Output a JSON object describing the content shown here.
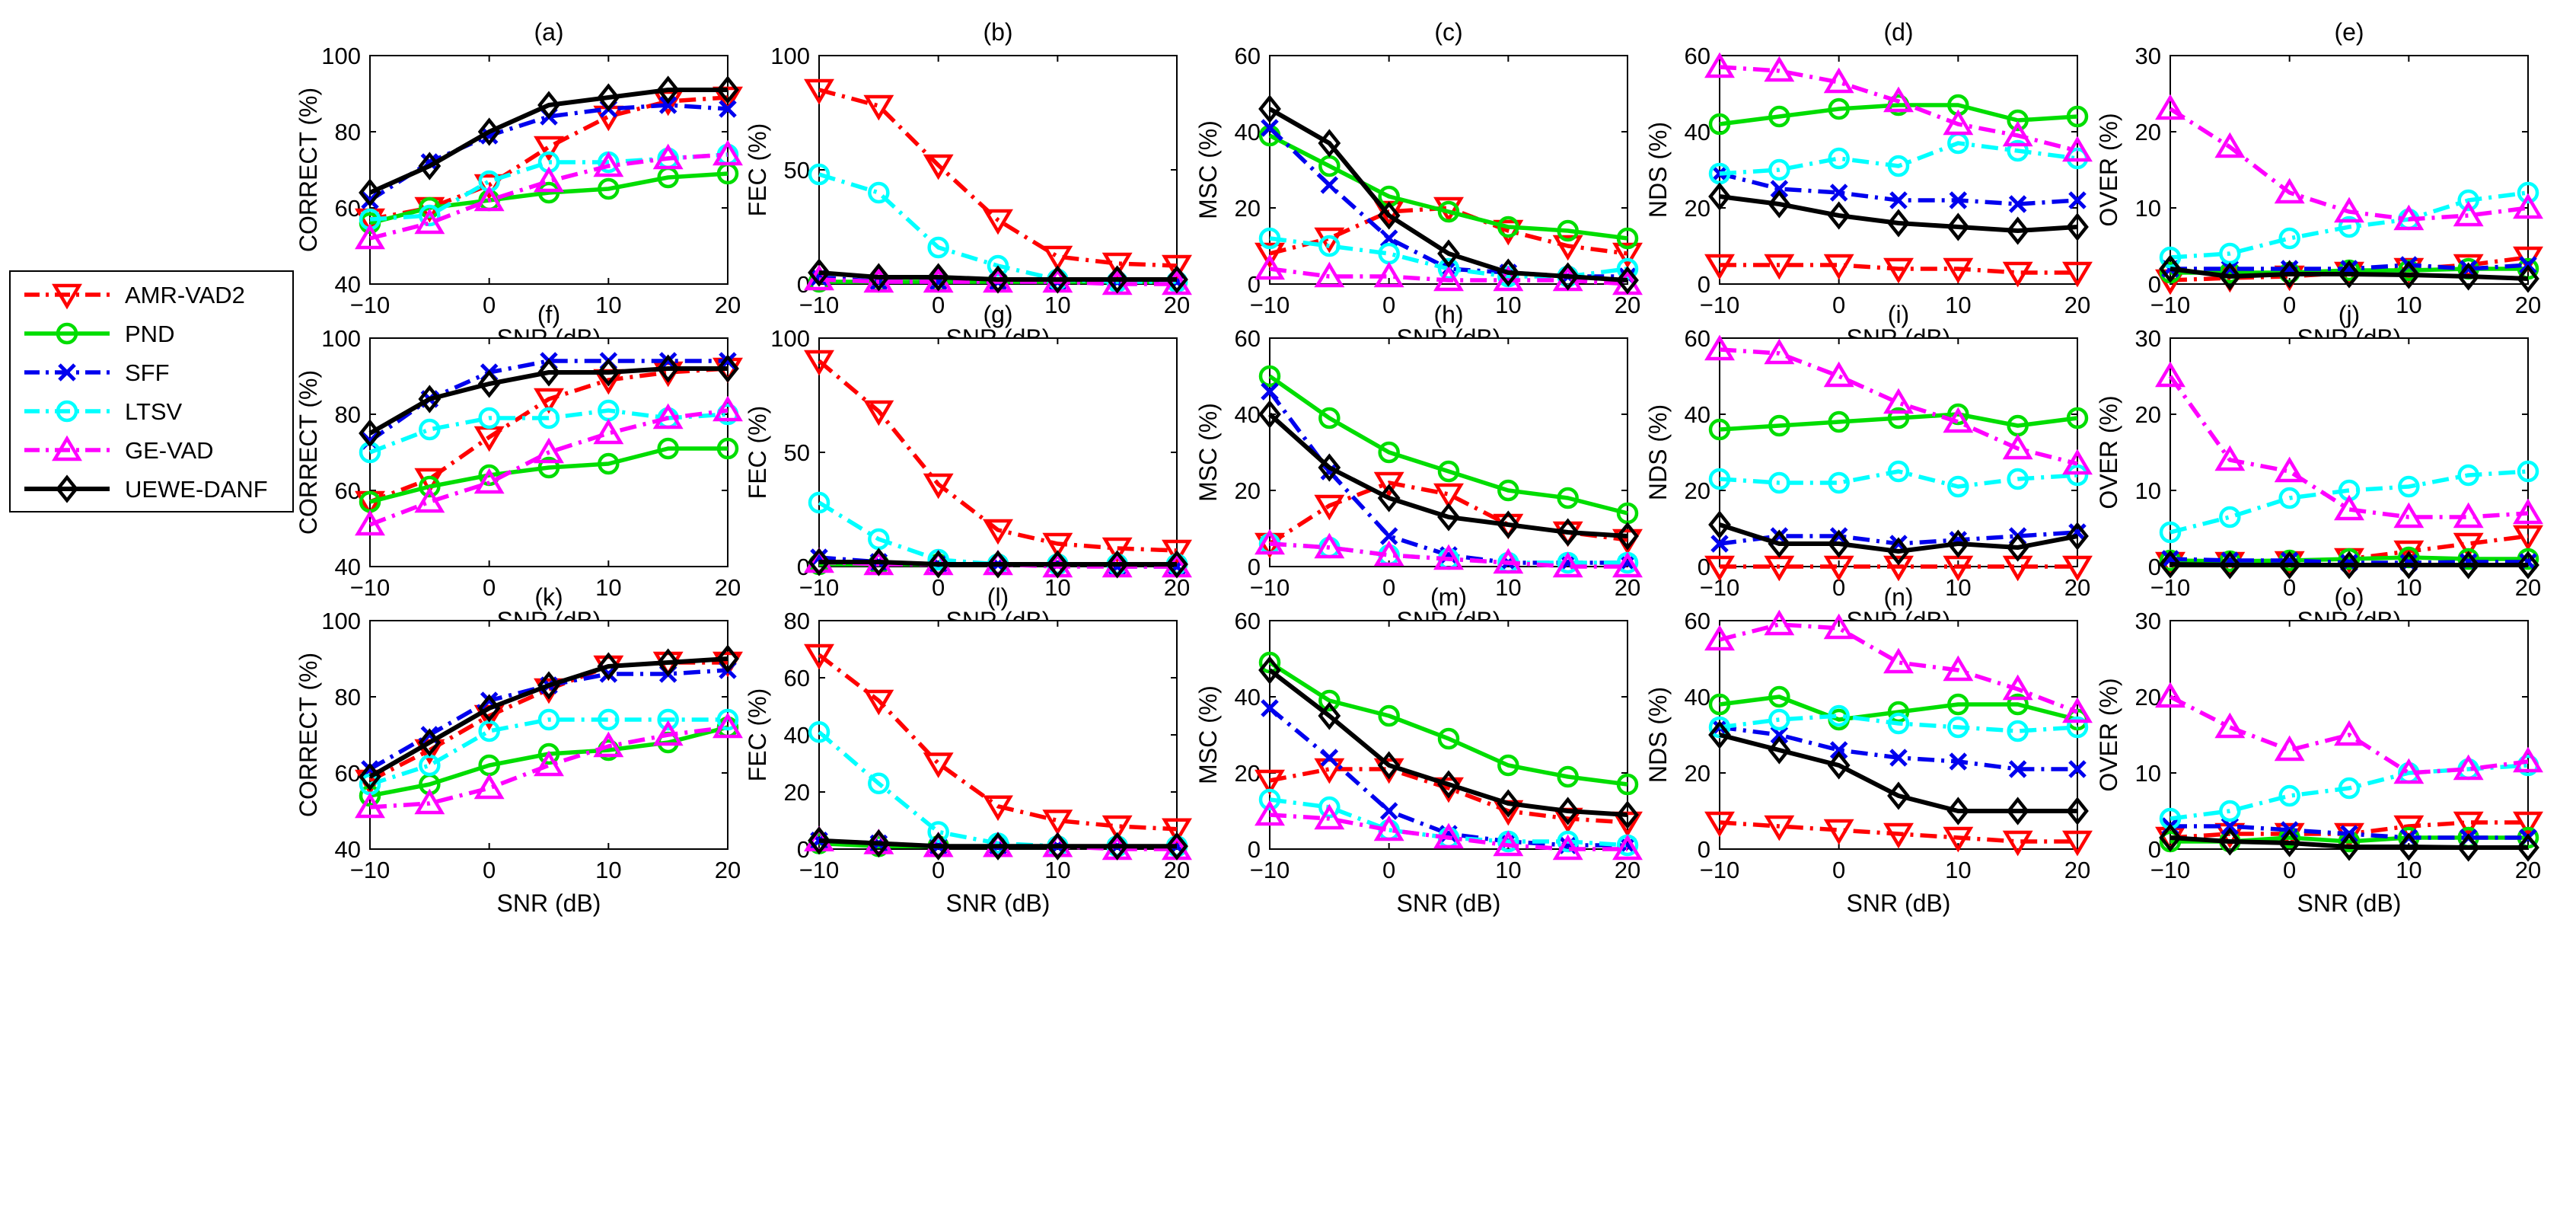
{
  "legend": [
    {
      "key": "amr",
      "label": "AMR-VAD2",
      "color": "#ff0000",
      "dash": "dashdot",
      "marker": "triangle-down"
    },
    {
      "key": "pnd",
      "label": "PND",
      "color": "#00dd00",
      "dash": "solid",
      "marker": "circle"
    },
    {
      "key": "sff",
      "label": "SFF",
      "color": "#0000ee",
      "dash": "dashdot",
      "marker": "x"
    },
    {
      "key": "ltsv",
      "label": "LTSV",
      "color": "#00ffff",
      "dash": "dashdot",
      "marker": "circle"
    },
    {
      "key": "gevad",
      "label": "GE-VAD",
      "color": "#ff00ff",
      "dash": "dashdot",
      "marker": "triangle-up"
    },
    {
      "key": "uewe",
      "label": "UEWE-DANF",
      "color": "#000000",
      "dash": "solid",
      "marker": "diamond"
    }
  ],
  "chart_data": [
    {
      "id": "a",
      "type": "line",
      "title": "(a)",
      "xlabel": "SNR (dB)",
      "ylabel": "CORRECT (%)",
      "x": [
        -10,
        -5,
        0,
        5,
        10,
        15,
        20
      ],
      "xlim": [
        -10,
        20
      ],
      "xticks": [
        "−10",
        "0",
        "10",
        "20"
      ],
      "ylim": [
        40,
        100
      ],
      "yticks": [
        "40",
        "60",
        "80",
        "100"
      ],
      "series": {
        "amr": [
          57,
          60,
          66,
          76,
          84,
          88,
          89
        ],
        "pnd": [
          56,
          60,
          62,
          64,
          65,
          68,
          69
        ],
        "sff": [
          62,
          72,
          79,
          84,
          86,
          87,
          86
        ],
        "ltsv": [
          57,
          58,
          67,
          72,
          72,
          73,
          74
        ],
        "gevad": [
          52,
          56,
          62,
          67,
          71,
          73,
          74
        ],
        "uewe": [
          64,
          71,
          80,
          87,
          89,
          91,
          91
        ]
      }
    },
    {
      "id": "b",
      "type": "line",
      "title": "(b)",
      "xlabel": "SNR (dB)",
      "ylabel": "FEC (%)",
      "x": [
        -10,
        -5,
        0,
        5,
        10,
        15,
        20
      ],
      "xlim": [
        -10,
        20
      ],
      "xticks": [
        "−10",
        "0",
        "10",
        "20"
      ],
      "ylim": [
        0,
        100
      ],
      "yticks": [
        "0",
        "50",
        "100"
      ],
      "series": {
        "amr": [
          85,
          78,
          52,
          28,
          12,
          9,
          8
        ],
        "pnd": [
          1,
          1,
          1,
          1,
          1,
          1,
          1
        ],
        "sff": [
          3,
          1,
          1,
          1,
          1,
          1,
          1
        ],
        "ltsv": [
          48,
          40,
          16,
          8,
          2,
          1,
          1
        ],
        "gevad": [
          2,
          1,
          1,
          1,
          1,
          0,
          0
        ],
        "uewe": [
          5,
          3,
          3,
          2,
          2,
          2,
          2
        ]
      }
    },
    {
      "id": "c",
      "type": "line",
      "title": "(c)",
      "xlabel": "SNR (dB)",
      "ylabel": "MSC (%)",
      "x": [
        -10,
        -5,
        0,
        5,
        10,
        15,
        20
      ],
      "xlim": [
        -10,
        20
      ],
      "xticks": [
        "−10",
        "0",
        "10",
        "20"
      ],
      "ylim": [
        0,
        60
      ],
      "yticks": [
        "0",
        "20",
        "40",
        "60"
      ],
      "series": {
        "amr": [
          8,
          12,
          19,
          20,
          14,
          10,
          8
        ],
        "pnd": [
          39,
          31,
          23,
          19,
          15,
          14,
          12
        ],
        "sff": [
          41,
          26,
          12,
          4,
          3,
          2,
          2
        ],
        "ltsv": [
          12,
          10,
          8,
          4,
          2,
          2,
          4
        ],
        "gevad": [
          4,
          2,
          2,
          1,
          1,
          1,
          0
        ],
        "uewe": [
          46,
          37,
          18,
          8,
          3,
          2,
          1
        ]
      }
    },
    {
      "id": "d",
      "type": "line",
      "title": "(d)",
      "xlabel": "SNR (dB)",
      "ylabel": "NDS (%)",
      "x": [
        -10,
        -5,
        0,
        5,
        10,
        15,
        20
      ],
      "xlim": [
        -10,
        20
      ],
      "xticks": [
        "−10",
        "0",
        "10",
        "20"
      ],
      "ylim": [
        0,
        60
      ],
      "yticks": [
        "0",
        "20",
        "40",
        "60"
      ],
      "series": {
        "amr": [
          5,
          5,
          5,
          4,
          4,
          3,
          3
        ],
        "pnd": [
          42,
          44,
          46,
          47,
          47,
          43,
          44
        ],
        "sff": [
          29,
          25,
          24,
          22,
          22,
          21,
          22
        ],
        "ltsv": [
          29,
          30,
          33,
          31,
          37,
          35,
          33
        ],
        "gevad": [
          57,
          56,
          53,
          48,
          42,
          39,
          35
        ],
        "uewe": [
          23,
          21,
          18,
          16,
          15,
          14,
          15
        ]
      }
    },
    {
      "id": "e",
      "type": "line",
      "title": "(e)",
      "xlabel": "SNR (dB)",
      "ylabel": "OVER (%)",
      "x": [
        -10,
        -5,
        0,
        5,
        10,
        15,
        20
      ],
      "xlim": [
        -10,
        20
      ],
      "xticks": [
        "−10",
        "0",
        "10",
        "20"
      ],
      "ylim": [
        0,
        30
      ],
      "yticks": [
        "0",
        "10",
        "20",
        "30"
      ],
      "series": {
        "amr": [
          0.5,
          0.8,
          1,
          1.5,
          2,
          2.5,
          3.5
        ],
        "pnd": [
          1.5,
          1.5,
          1.5,
          1.8,
          1.8,
          2,
          2
        ],
        "sff": [
          2,
          2,
          2,
          2,
          2.5,
          2,
          2.5
        ],
        "ltsv": [
          3.5,
          4,
          6,
          7.5,
          8.5,
          11,
          12
        ],
        "gevad": [
          23,
          18,
          12,
          9.5,
          8.5,
          9,
          10
        ],
        "uewe": [
          2,
          1,
          1.3,
          1.3,
          1.2,
          1,
          0.7
        ]
      }
    },
    {
      "id": "f",
      "type": "line",
      "title": "(f)",
      "xlabel": "SNR (dB)",
      "ylabel": "CORRECT (%)",
      "x": [
        -10,
        -5,
        0,
        5,
        10,
        15,
        20
      ],
      "xlim": [
        -10,
        20
      ],
      "xticks": [
        "−10",
        "0",
        "10",
        "20"
      ],
      "ylim": [
        40,
        100
      ],
      "yticks": [
        "40",
        "60",
        "80",
        "100"
      ],
      "series": {
        "amr": [
          57,
          63,
          74,
          84,
          89,
          91,
          92
        ],
        "pnd": [
          57,
          61,
          64,
          66,
          67,
          71,
          71
        ],
        "sff": [
          73,
          84,
          91,
          94,
          94,
          94,
          94
        ],
        "ltsv": [
          70,
          76,
          79,
          79,
          81,
          79,
          80
        ],
        "gevad": [
          51,
          57,
          62,
          70,
          75,
          79,
          81
        ],
        "uewe": [
          75,
          84,
          88,
          91,
          91,
          92,
          92
        ]
      }
    },
    {
      "id": "g",
      "type": "line",
      "title": "(g)",
      "xlabel": "SNR (dB)",
      "ylabel": "FEC (%)",
      "x": [
        -10,
        -5,
        0,
        5,
        10,
        15,
        20
      ],
      "xlim": [
        -10,
        20
      ],
      "xticks": [
        "−10",
        "0",
        "10",
        "20"
      ],
      "ylim": [
        0,
        100
      ],
      "yticks": [
        "0",
        "50",
        "100"
      ],
      "series": {
        "amr": [
          90,
          68,
          36,
          16,
          10,
          8,
          7
        ],
        "pnd": [
          1,
          1,
          1,
          1,
          1,
          1,
          1
        ],
        "sff": [
          4,
          2,
          1,
          1,
          1,
          0,
          0
        ],
        "ltsv": [
          28,
          12,
          3,
          1,
          1,
          1,
          1
        ],
        "gevad": [
          2,
          1,
          1,
          1,
          0,
          0,
          0
        ],
        "uewe": [
          2,
          2,
          1,
          1,
          1,
          1,
          1
        ]
      }
    },
    {
      "id": "h",
      "type": "line",
      "title": "(h)",
      "xlabel": "SNR (dB)",
      "ylabel": "MSC (%)",
      "x": [
        -10,
        -5,
        0,
        5,
        10,
        15,
        20
      ],
      "xlim": [
        -10,
        20
      ],
      "xticks": [
        "−10",
        "0",
        "10",
        "20"
      ],
      "ylim": [
        0,
        60
      ],
      "yticks": [
        "0",
        "20",
        "40",
        "60"
      ],
      "series": {
        "amr": [
          6,
          16,
          22,
          19,
          11,
          9,
          7
        ],
        "pnd": [
          50,
          39,
          30,
          25,
          20,
          18,
          14
        ],
        "sff": [
          46,
          25,
          8,
          3,
          1,
          1,
          1
        ],
        "ltsv": [
          6,
          5,
          3,
          2,
          1,
          1,
          1
        ],
        "gevad": [
          6,
          5,
          3,
          2,
          1,
          0,
          0
        ],
        "uewe": [
          40,
          26,
          18,
          13,
          11,
          9,
          8
        ]
      }
    },
    {
      "id": "i",
      "type": "line",
      "title": "(i)",
      "xlabel": "SNR (dB)",
      "ylabel": "NDS (%)",
      "x": [
        -10,
        -5,
        0,
        5,
        10,
        15,
        20
      ],
      "xlim": [
        -10,
        20
      ],
      "xticks": [
        "−10",
        "0",
        "10",
        "20"
      ],
      "ylim": [
        0,
        60
      ],
      "yticks": [
        "0",
        "20",
        "40",
        "60"
      ],
      "series": {
        "amr": [
          0,
          0,
          0,
          0,
          0,
          0,
          0
        ],
        "pnd": [
          36,
          37,
          38,
          39,
          40,
          37,
          39
        ],
        "sff": [
          6,
          8,
          8,
          6,
          7,
          8,
          9
        ],
        "ltsv": [
          23,
          22,
          22,
          25,
          21,
          23,
          24
        ],
        "gevad": [
          57,
          56,
          50,
          43,
          38,
          31,
          27
        ],
        "uewe": [
          11,
          6,
          6,
          4,
          6,
          5,
          8
        ]
      }
    },
    {
      "id": "j",
      "type": "line",
      "title": "(j)",
      "xlabel": "SNR (dB)",
      "ylabel": "OVER (%)",
      "x": [
        -10,
        -5,
        0,
        5,
        10,
        15,
        20
      ],
      "xlim": [
        -10,
        20
      ],
      "xticks": [
        "−10",
        "0",
        "10",
        "20"
      ],
      "ylim": [
        0,
        30
      ],
      "yticks": [
        "0",
        "10",
        "20",
        "30"
      ],
      "series": {
        "amr": [
          0.5,
          0.5,
          0.6,
          1,
          2,
          3,
          4
        ],
        "pnd": [
          0.8,
          0.7,
          0.8,
          1,
          1.2,
          1,
          1
        ],
        "sff": [
          1,
          0.8,
          0.8,
          0.5,
          0.5,
          0.6,
          0.6
        ],
        "ltsv": [
          4.5,
          6.5,
          9,
          10,
          10.5,
          12,
          12.5
        ],
        "gevad": [
          25,
          14,
          12.5,
          7.5,
          6.5,
          6.5,
          7
        ],
        "uewe": [
          0.3,
          0.2,
          0.2,
          0.2,
          0.2,
          0.2,
          0.2
        ]
      }
    },
    {
      "id": "k",
      "type": "line",
      "title": "(k)",
      "xlabel": "SNR (dB)",
      "ylabel": "CORRECT (%)",
      "x": [
        -10,
        -5,
        0,
        5,
        10,
        15,
        20
      ],
      "xlim": [
        -10,
        20
      ],
      "xticks": [
        "−10",
        "0",
        "10",
        "20"
      ],
      "ylim": [
        40,
        100
      ],
      "yticks": [
        "40",
        "60",
        "80",
        "100"
      ],
      "series": {
        "amr": [
          58,
          66,
          75,
          82,
          88,
          89,
          89
        ],
        "pnd": [
          54,
          57,
          62,
          65,
          66,
          68,
          72
        ],
        "sff": [
          61,
          70,
          79,
          83,
          86,
          86,
          87
        ],
        "ltsv": [
          57,
          62,
          71,
          74,
          74,
          74,
          74
        ],
        "gevad": [
          51,
          52,
          56,
          62,
          67,
          70,
          72
        ],
        "uewe": [
          59,
          68,
          77,
          83,
          88,
          89,
          90
        ]
      }
    },
    {
      "id": "l",
      "type": "line",
      "title": "(l)",
      "xlabel": "SNR (dB)",
      "ylabel": "FEC (%)",
      "x": [
        -10,
        -5,
        0,
        5,
        10,
        15,
        20
      ],
      "xlim": [
        -10,
        20
      ],
      "xticks": [
        "−10",
        "0",
        "10",
        "20"
      ],
      "ylim": [
        0,
        80
      ],
      "yticks": [
        "0",
        "20",
        "40",
        "60",
        "80"
      ],
      "series": {
        "amr": [
          68,
          52,
          30,
          15,
          10,
          8,
          7
        ],
        "pnd": [
          2,
          1,
          1,
          1,
          1,
          1,
          1
        ],
        "sff": [
          3,
          2,
          1,
          1,
          1,
          1,
          1
        ],
        "ltsv": [
          41,
          23,
          6,
          2,
          1,
          1,
          1
        ],
        "gevad": [
          3,
          2,
          1,
          1,
          1,
          0,
          0
        ],
        "uewe": [
          3,
          2,
          1,
          1,
          1,
          1,
          1
        ]
      }
    },
    {
      "id": "m",
      "type": "line",
      "title": "(m)",
      "xlabel": "SNR (dB)",
      "ylabel": "MSC (%)",
      "x": [
        -10,
        -5,
        0,
        5,
        10,
        15,
        20
      ],
      "xlim": [
        -10,
        20
      ],
      "xticks": [
        "−10",
        "0",
        "10",
        "20"
      ],
      "ylim": [
        0,
        60
      ],
      "yticks": [
        "0",
        "20",
        "40",
        "60"
      ],
      "series": {
        "amr": [
          18,
          21,
          21,
          16,
          10,
          8,
          7
        ],
        "pnd": [
          49,
          39,
          35,
          29,
          22,
          19,
          17
        ],
        "sff": [
          37,
          24,
          10,
          4,
          2,
          1,
          1
        ],
        "ltsv": [
          13,
          11,
          5,
          3,
          2,
          2,
          1
        ],
        "gevad": [
          9,
          8,
          5,
          3,
          1,
          0,
          0
        ],
        "uewe": [
          47,
          35,
          22,
          17,
          12,
          10,
          9
        ]
      }
    },
    {
      "id": "n",
      "type": "line",
      "title": "(n)",
      "xlabel": "SNR (dB)",
      "ylabel": "NDS (%)",
      "x": [
        -10,
        -5,
        0,
        5,
        10,
        15,
        20
      ],
      "xlim": [
        -10,
        20
      ],
      "xticks": [
        "−10",
        "0",
        "10",
        "20"
      ],
      "ylim": [
        0,
        60
      ],
      "yticks": [
        "0",
        "20",
        "40",
        "60"
      ],
      "series": {
        "amr": [
          7,
          6,
          5,
          4,
          3,
          2,
          2
        ],
        "pnd": [
          38,
          40,
          34,
          36,
          38,
          38,
          34
        ],
        "sff": [
          32,
          30,
          26,
          24,
          23,
          21,
          21
        ],
        "ltsv": [
          32,
          34,
          35,
          33,
          32,
          31,
          32
        ],
        "gevad": [
          55,
          59,
          58,
          49,
          47,
          42,
          36
        ],
        "uewe": [
          30,
          26,
          22,
          14,
          10,
          10,
          10
        ]
      }
    },
    {
      "id": "o",
      "type": "line",
      "title": "(o)",
      "xlabel": "SNR (dB)",
      "ylabel": "OVER (%)",
      "x": [
        -10,
        -5,
        0,
        5,
        10,
        15,
        20
      ],
      "xlim": [
        -10,
        20
      ],
      "xticks": [
        "−10",
        "0",
        "10",
        "20"
      ],
      "ylim": [
        0,
        30
      ],
      "yticks": [
        "0",
        "10",
        "20",
        "30"
      ],
      "series": {
        "amr": [
          1.5,
          2,
          2,
          2,
          3,
          3.5,
          3.5
        ],
        "pnd": [
          1,
          1,
          1.5,
          1,
          1.5,
          1.5,
          1.5
        ],
        "sff": [
          3,
          3,
          2.5,
          2,
          1.5,
          1.5,
          1.5
        ],
        "ltsv": [
          4,
          5,
          7,
          8,
          10,
          10.5,
          11
        ],
        "gevad": [
          20,
          16,
          13,
          15,
          10,
          10.5,
          11.5
        ],
        "uewe": [
          1.5,
          1,
          0.8,
          0.3,
          0.3,
          0.2,
          0.2
        ]
      }
    }
  ]
}
